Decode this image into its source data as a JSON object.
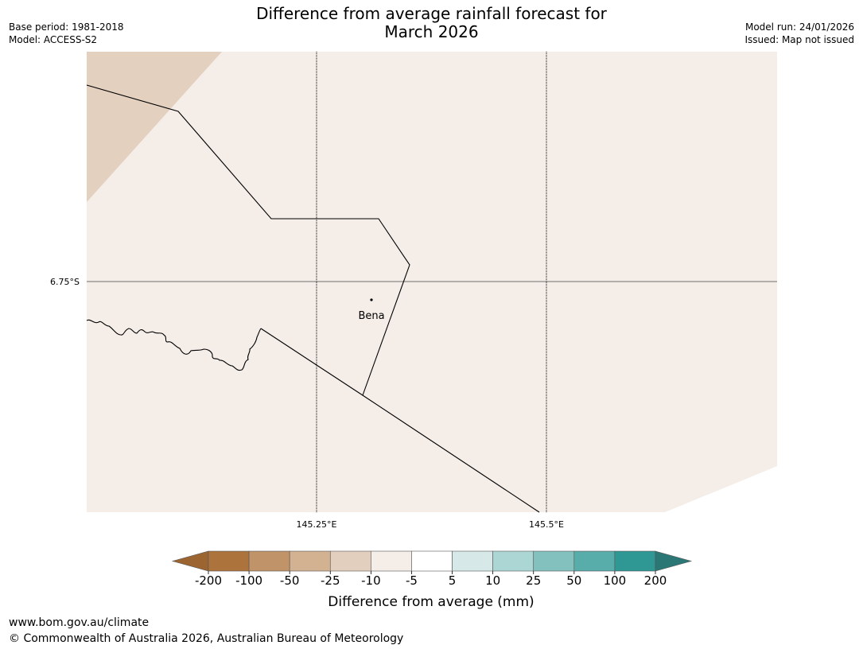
{
  "header": {
    "title_line1": "Difference from average rainfall forecast for",
    "title_line2": "March 2026",
    "base_period": "Base period: 1981-2018",
    "model": "Model: ACCESS-S2",
    "model_run": "Model run: 24/01/2026",
    "issued": "Issued: Map not issued"
  },
  "map": {
    "latitude_labels": [
      "6.75°S"
    ],
    "longitude_labels": [
      "145.25°E",
      "145.5°E"
    ],
    "place_label": "Bena",
    "fill_colors": {
      "background": "#f4ede8",
      "dry_corner": "#e3d0bf",
      "ocean": "#ffffff",
      "grid_line": "#000000"
    }
  },
  "legend": {
    "tick_labels": [
      "-200",
      "-100",
      "-50",
      "-25",
      "-10",
      "-5",
      "5",
      "10",
      "25",
      "50",
      "100",
      "200"
    ],
    "colors": {
      "below_min": "#9c6431",
      "bins": [
        "#ac743c",
        "#c19369",
        "#d3b292",
        "#e3cfbd",
        "#f4ede8",
        "#ffffff",
        "#d6e9e8",
        "#acd6d4",
        "#83c1be",
        "#58aca9",
        "#2f9895"
      ],
      "above_max": "#2a7776"
    },
    "label": "Difference from average (mm)"
  },
  "footer": {
    "url": "www.bom.gov.au/climate",
    "copyright": "© Commonwealth of Australia 2026, Australian Bureau of Meteorology"
  }
}
